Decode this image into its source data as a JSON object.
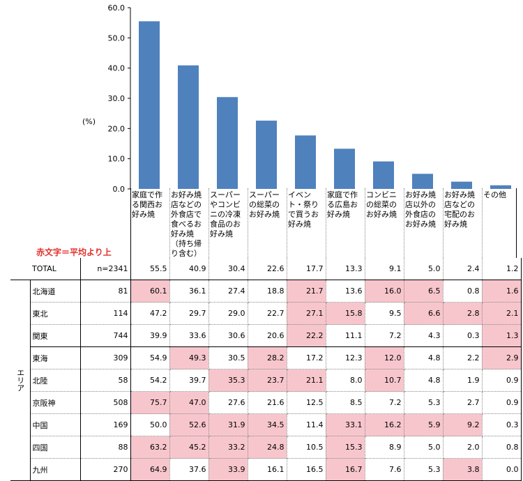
{
  "chart_data": {
    "type": "bar",
    "unit_label": "(%)",
    "ylim": [
      0,
      60
    ],
    "yticks": [
      "0.0",
      "10.0",
      "20.0",
      "30.0",
      "40.0",
      "50.0",
      "60.0"
    ],
    "categories": [
      "家庭で作る関西お好み焼",
      "お好み焼店などの外食店で食べるお好み焼（持ち帰り含む）",
      "スーパーやコンビニの冷凍食品のお好み焼",
      "スーパーの総菜のお好み焼",
      "イベント・祭りで買うお好み焼",
      "家庭で作る広島お好み焼",
      "コンビニの総菜のお好み焼",
      "お好み焼店以外の外食店のお好み焼",
      "お好み焼店などの宅配のお好み焼",
      "その他"
    ],
    "values": [
      55.5,
      40.9,
      30.4,
      22.6,
      17.7,
      13.3,
      9.1,
      5.0,
      2.4,
      1.2
    ],
    "bar_color": "#4f81bd"
  },
  "table": {
    "note": "赤文字＝平均より上",
    "area_label": "エリア",
    "highlight_color": "#f7c6cc",
    "total": {
      "label": "TOTAL",
      "n": "n=2341",
      "values": [
        "55.5",
        "40.9",
        "30.4",
        "22.6",
        "17.7",
        "13.3",
        "9.1",
        "5.0",
        "2.4",
        "1.2"
      ]
    },
    "rows": [
      {
        "region": "北海道",
        "n": "81",
        "values": [
          "60.1",
          "36.1",
          "27.4",
          "18.8",
          "21.7",
          "13.6",
          "16.0",
          "6.5",
          "0.8",
          "1.6"
        ],
        "highlight": [
          0,
          4,
          6,
          7,
          9
        ]
      },
      {
        "region": "東北",
        "n": "114",
        "values": [
          "47.2",
          "29.7",
          "29.0",
          "22.7",
          "27.1",
          "15.8",
          "9.5",
          "6.6",
          "2.8",
          "2.1"
        ],
        "highlight": [
          4,
          5,
          7,
          8,
          9
        ]
      },
      {
        "region": "関東",
        "n": "744",
        "values": [
          "39.9",
          "33.6",
          "30.6",
          "20.6",
          "22.2",
          "11.1",
          "7.2",
          "4.3",
          "0.3",
          "1.3"
        ],
        "highlight": [
          4,
          9
        ]
      },
      {
        "region": "東海",
        "n": "309",
        "values": [
          "54.9",
          "49.3",
          "30.5",
          "28.2",
          "17.2",
          "12.3",
          "12.0",
          "4.8",
          "2.2",
          "2.9"
        ],
        "highlight": [
          1,
          3,
          6,
          9
        ]
      },
      {
        "region": "北陸",
        "n": "58",
        "values": [
          "54.2",
          "39.7",
          "35.3",
          "23.7",
          "21.1",
          "8.0",
          "10.7",
          "4.8",
          "1.9",
          "0.9"
        ],
        "highlight": [
          2,
          3,
          4,
          6
        ]
      },
      {
        "region": "京阪神",
        "n": "508",
        "values": [
          "75.7",
          "47.0",
          "27.6",
          "21.6",
          "12.5",
          "8.5",
          "7.2",
          "5.3",
          "2.7",
          "0.9"
        ],
        "highlight": [
          0,
          1
        ]
      },
      {
        "region": "中国",
        "n": "169",
        "values": [
          "50.0",
          "52.6",
          "31.9",
          "34.5",
          "11.4",
          "33.1",
          "16.2",
          "5.9",
          "9.2",
          "0.3"
        ],
        "highlight": [
          1,
          2,
          3,
          5,
          6,
          7,
          8
        ]
      },
      {
        "region": "四国",
        "n": "88",
        "values": [
          "63.2",
          "45.2",
          "33.2",
          "24.8",
          "10.5",
          "15.3",
          "8.9",
          "5.0",
          "2.0",
          "0.8"
        ],
        "highlight": [
          0,
          1,
          2,
          3,
          5
        ]
      },
      {
        "region": "九州",
        "n": "270",
        "values": [
          "64.9",
          "37.6",
          "33.9",
          "16.1",
          "16.5",
          "16.7",
          "7.6",
          "5.3",
          "3.8",
          "0.0"
        ],
        "highlight": [
          0,
          2,
          5,
          8
        ]
      }
    ]
  }
}
